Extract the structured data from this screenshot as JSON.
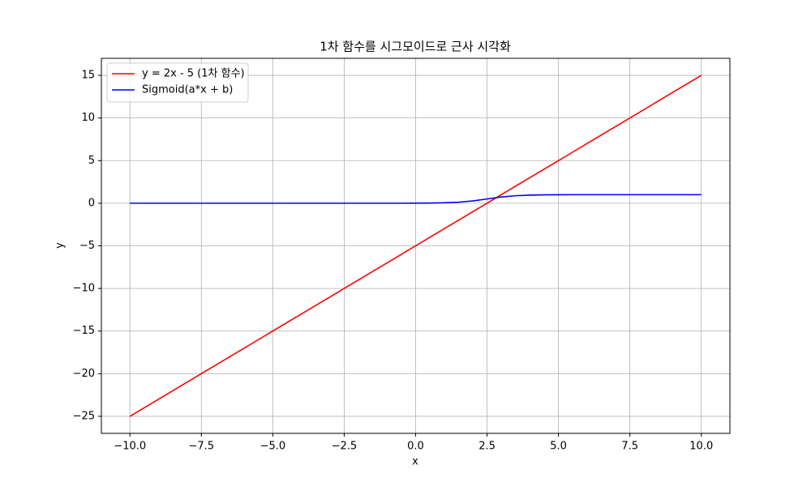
{
  "chart_data": {
    "type": "line",
    "title": "1차 함수를 시그모이드로 근사 시각화",
    "x_label": "x",
    "y_label": "y",
    "x": [
      -10,
      -9.5,
      -9,
      -8.5,
      -8,
      -7.5,
      -7,
      -6.5,
      -6,
      -5.5,
      -5,
      -4.5,
      -4,
      -3.5,
      -3,
      -2.5,
      -2,
      -1.5,
      -1,
      -0.5,
      0,
      0.5,
      1,
      1.5,
      2,
      2.5,
      3,
      3.5,
      4,
      4.5,
      5,
      5.5,
      6,
      6.5,
      7,
      7.5,
      8,
      8.5,
      9,
      9.5,
      10
    ],
    "series": [
      {
        "name": "y = 2x - 5 (1차 함수)",
        "color": "#ff0000",
        "values": [
          -25,
          -24,
          -23,
          -22,
          -21,
          -20,
          -19,
          -18,
          -17,
          -16,
          -15,
          -14,
          -13,
          -12,
          -11,
          -10,
          -9,
          -8,
          -7,
          -6,
          -5,
          -4,
          -3,
          -2,
          -1,
          0,
          1,
          2,
          3,
          4,
          5,
          6,
          7,
          8,
          9,
          10,
          11,
          12,
          13,
          14,
          15
        ]
      },
      {
        "name": "Sigmoid(a*x + b)",
        "color": "#0000ff",
        "values": [
          0,
          0,
          0,
          0,
          0,
          0,
          0,
          0,
          0,
          0,
          0,
          0,
          0,
          0,
          0,
          0,
          0,
          0,
          0,
          0,
          0.01,
          0.02,
          0.05,
          0.12,
          0.27,
          0.5,
          0.73,
          0.88,
          0.95,
          0.98,
          0.99,
          1,
          1,
          1,
          1,
          1,
          1,
          1,
          1,
          1,
          1
        ]
      }
    ],
    "xlim": [
      -11,
      11
    ],
    "ylim": [
      -27,
      17
    ],
    "xticks": [
      {
        "value": -10,
        "label": "−10.0"
      },
      {
        "value": -7.5,
        "label": "−7.5"
      },
      {
        "value": -5,
        "label": "−5.0"
      },
      {
        "value": -2.5,
        "label": "−2.5"
      },
      {
        "value": 0,
        "label": "0.0"
      },
      2.5,
      {
        "value": 5,
        "label": "5.0"
      },
      7.5,
      {
        "value": 10,
        "label": "10.0"
      }
    ],
    "yticks": [
      {
        "value": -25,
        "label": "−25"
      },
      {
        "value": -20,
        "label": "−20"
      },
      {
        "value": -15,
        "label": "−15"
      },
      {
        "value": -10,
        "label": "−10"
      },
      {
        "value": -5,
        "label": "−5"
      },
      0,
      5,
      10,
      15
    ],
    "grid": true,
    "legend": "upper-left"
  }
}
